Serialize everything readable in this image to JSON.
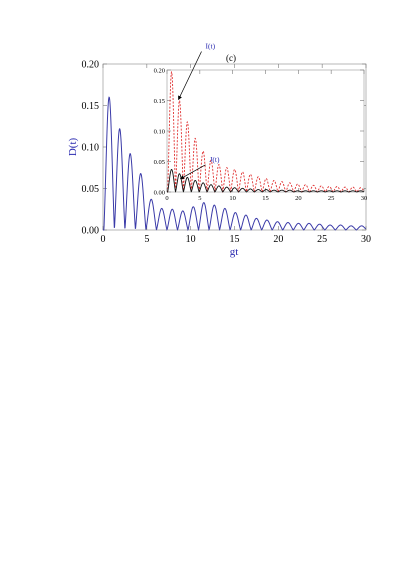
{
  "panel_label": "(c)",
  "chart_data": [
    {
      "type": "line",
      "role": "main",
      "xlabel": "gt",
      "ylabel": "D(t)",
      "xlim": [
        0,
        30
      ],
      "ylim": [
        0,
        0.2
      ],
      "xticks": [
        0,
        5,
        10,
        15,
        20,
        25,
        30
      ],
      "yticks": [
        "0.00",
        "0.05",
        "0.10",
        "0.15",
        "0.20"
      ],
      "series": [
        {
          "name": "D(t)",
          "color": "#3a3aa8",
          "style": "solid",
          "period": 1.2,
          "first_peak": 0.7,
          "peaks": [
            0.16,
            0.122,
            0.092,
            0.068,
            0.037,
            0.026,
            0.025,
            0.023,
            0.028,
            0.033,
            0.03,
            0.026,
            0.021,
            0.018,
            0.014,
            0.012,
            0.01,
            0.009,
            0.008,
            0.008,
            0.007,
            0.006,
            0.006,
            0.005,
            0.005
          ]
        }
      ]
    },
    {
      "type": "line",
      "role": "inset",
      "xlim": [
        0,
        30
      ],
      "ylim": [
        0,
        0.2
      ],
      "xticks": [
        0,
        5,
        10,
        15,
        20,
        25,
        30
      ],
      "yticks": [
        "0.00",
        "0.05",
        "0.10",
        "0.15",
        "0.20"
      ],
      "series": [
        {
          "name": "I(t)",
          "color": "#e03030",
          "style": "dashed",
          "period": 1.2,
          "first_peak": 0.7,
          "peaks": [
            0.197,
            0.15,
            0.115,
            0.088,
            0.067,
            0.052,
            0.045,
            0.04,
            0.037,
            0.033,
            0.029,
            0.025,
            0.022,
            0.019,
            0.017,
            0.015,
            0.013,
            0.012,
            0.011,
            0.01,
            0.009,
            0.009,
            0.008,
            0.008,
            0.007
          ]
        },
        {
          "name": "J(t)",
          "color": "#111111",
          "style": "solid",
          "period": 1.2,
          "first_peak": 0.7,
          "peaks": [
            0.037,
            0.03,
            0.024,
            0.019,
            0.015,
            0.012,
            0.01,
            0.008,
            0.007,
            0.006,
            0.005,
            0.004,
            0.004,
            0.003,
            0.003,
            0.003,
            0.002,
            0.002,
            0.002,
            0.002,
            0.002,
            0.002,
            0.002,
            0.002,
            0.002
          ]
        }
      ],
      "annotations": [
        {
          "text": "I(t)",
          "series": "I(t)",
          "point_x": 1.6,
          "point_y": 0.15
        },
        {
          "text": "J(t)",
          "series": "J(t)",
          "point_x": 1.9,
          "point_y": 0.02
        }
      ]
    }
  ]
}
